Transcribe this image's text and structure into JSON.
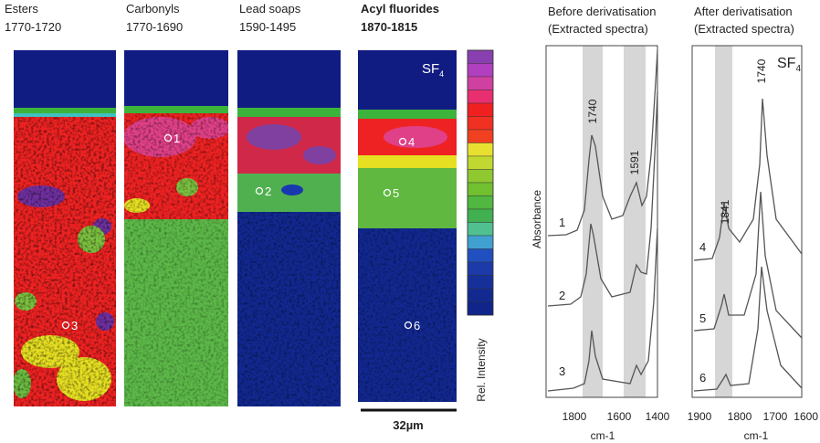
{
  "maps": [
    {
      "title": "Esters",
      "range": "1770-1720"
    },
    {
      "title": "Carbonyls",
      "range": "1770-1690"
    },
    {
      "title": "Lead soaps",
      "range": "1590-1495"
    },
    {
      "title": "Acyl fluorides",
      "range": "1870-1815"
    }
  ],
  "map_points": [
    "1",
    "2",
    "3",
    "4",
    "5",
    "6"
  ],
  "map_annotation": {
    "text": "SF",
    "subscript": "4"
  },
  "color_bar_label": "Rel. Intensity",
  "scale_bar": "32µm",
  "y_label": "Absorbance",
  "spectra": [
    {
      "title": "Before derivatisation",
      "subtitle": "(Extracted spectra)",
      "x_ticks": [
        "1800",
        "1600",
        "1400"
      ],
      "x_label": "cm-1",
      "peaks": [
        "1740",
        "1591"
      ],
      "traces": [
        "1",
        "2",
        "3"
      ]
    },
    {
      "title": "After derivatisation",
      "subtitle": "(Extracted spectra)",
      "x_ticks": [
        "1900",
        "1800",
        "1700",
        "1600"
      ],
      "x_label": "cm-1",
      "peaks": [
        "1841",
        "1740"
      ],
      "traces": [
        "4",
        "5",
        "6"
      ],
      "annotation": {
        "text": "SF",
        "subscript": "4"
      }
    }
  ]
}
